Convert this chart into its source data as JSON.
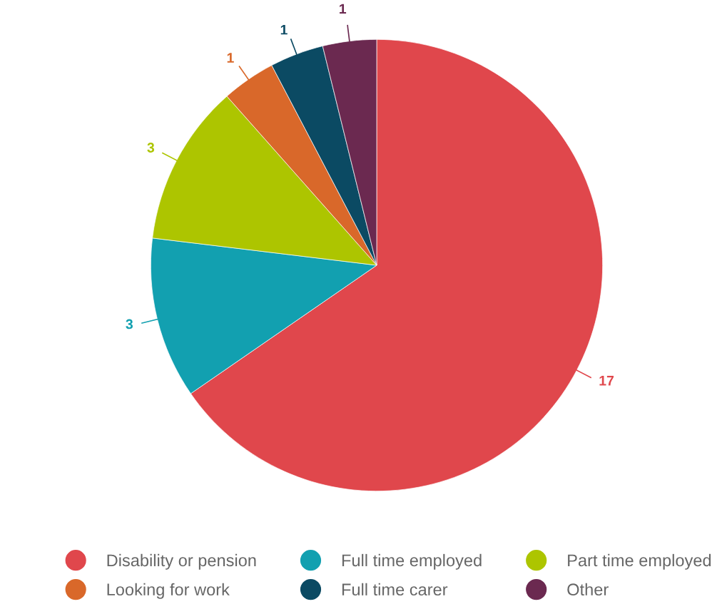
{
  "chart_data": {
    "type": "pie",
    "categories": [
      "Disability or pension",
      "Full time employed",
      "Part time employed",
      "Looking for work",
      "Full time carer",
      "Other"
    ],
    "values": [
      17,
      3,
      3,
      1,
      1,
      1
    ],
    "colors": [
      "#e0474c",
      "#12a0b0",
      "#adc500",
      "#d9682a",
      "#0b4a63",
      "#6b2950"
    ],
    "data_labels": true,
    "legend": "bottom"
  }
}
